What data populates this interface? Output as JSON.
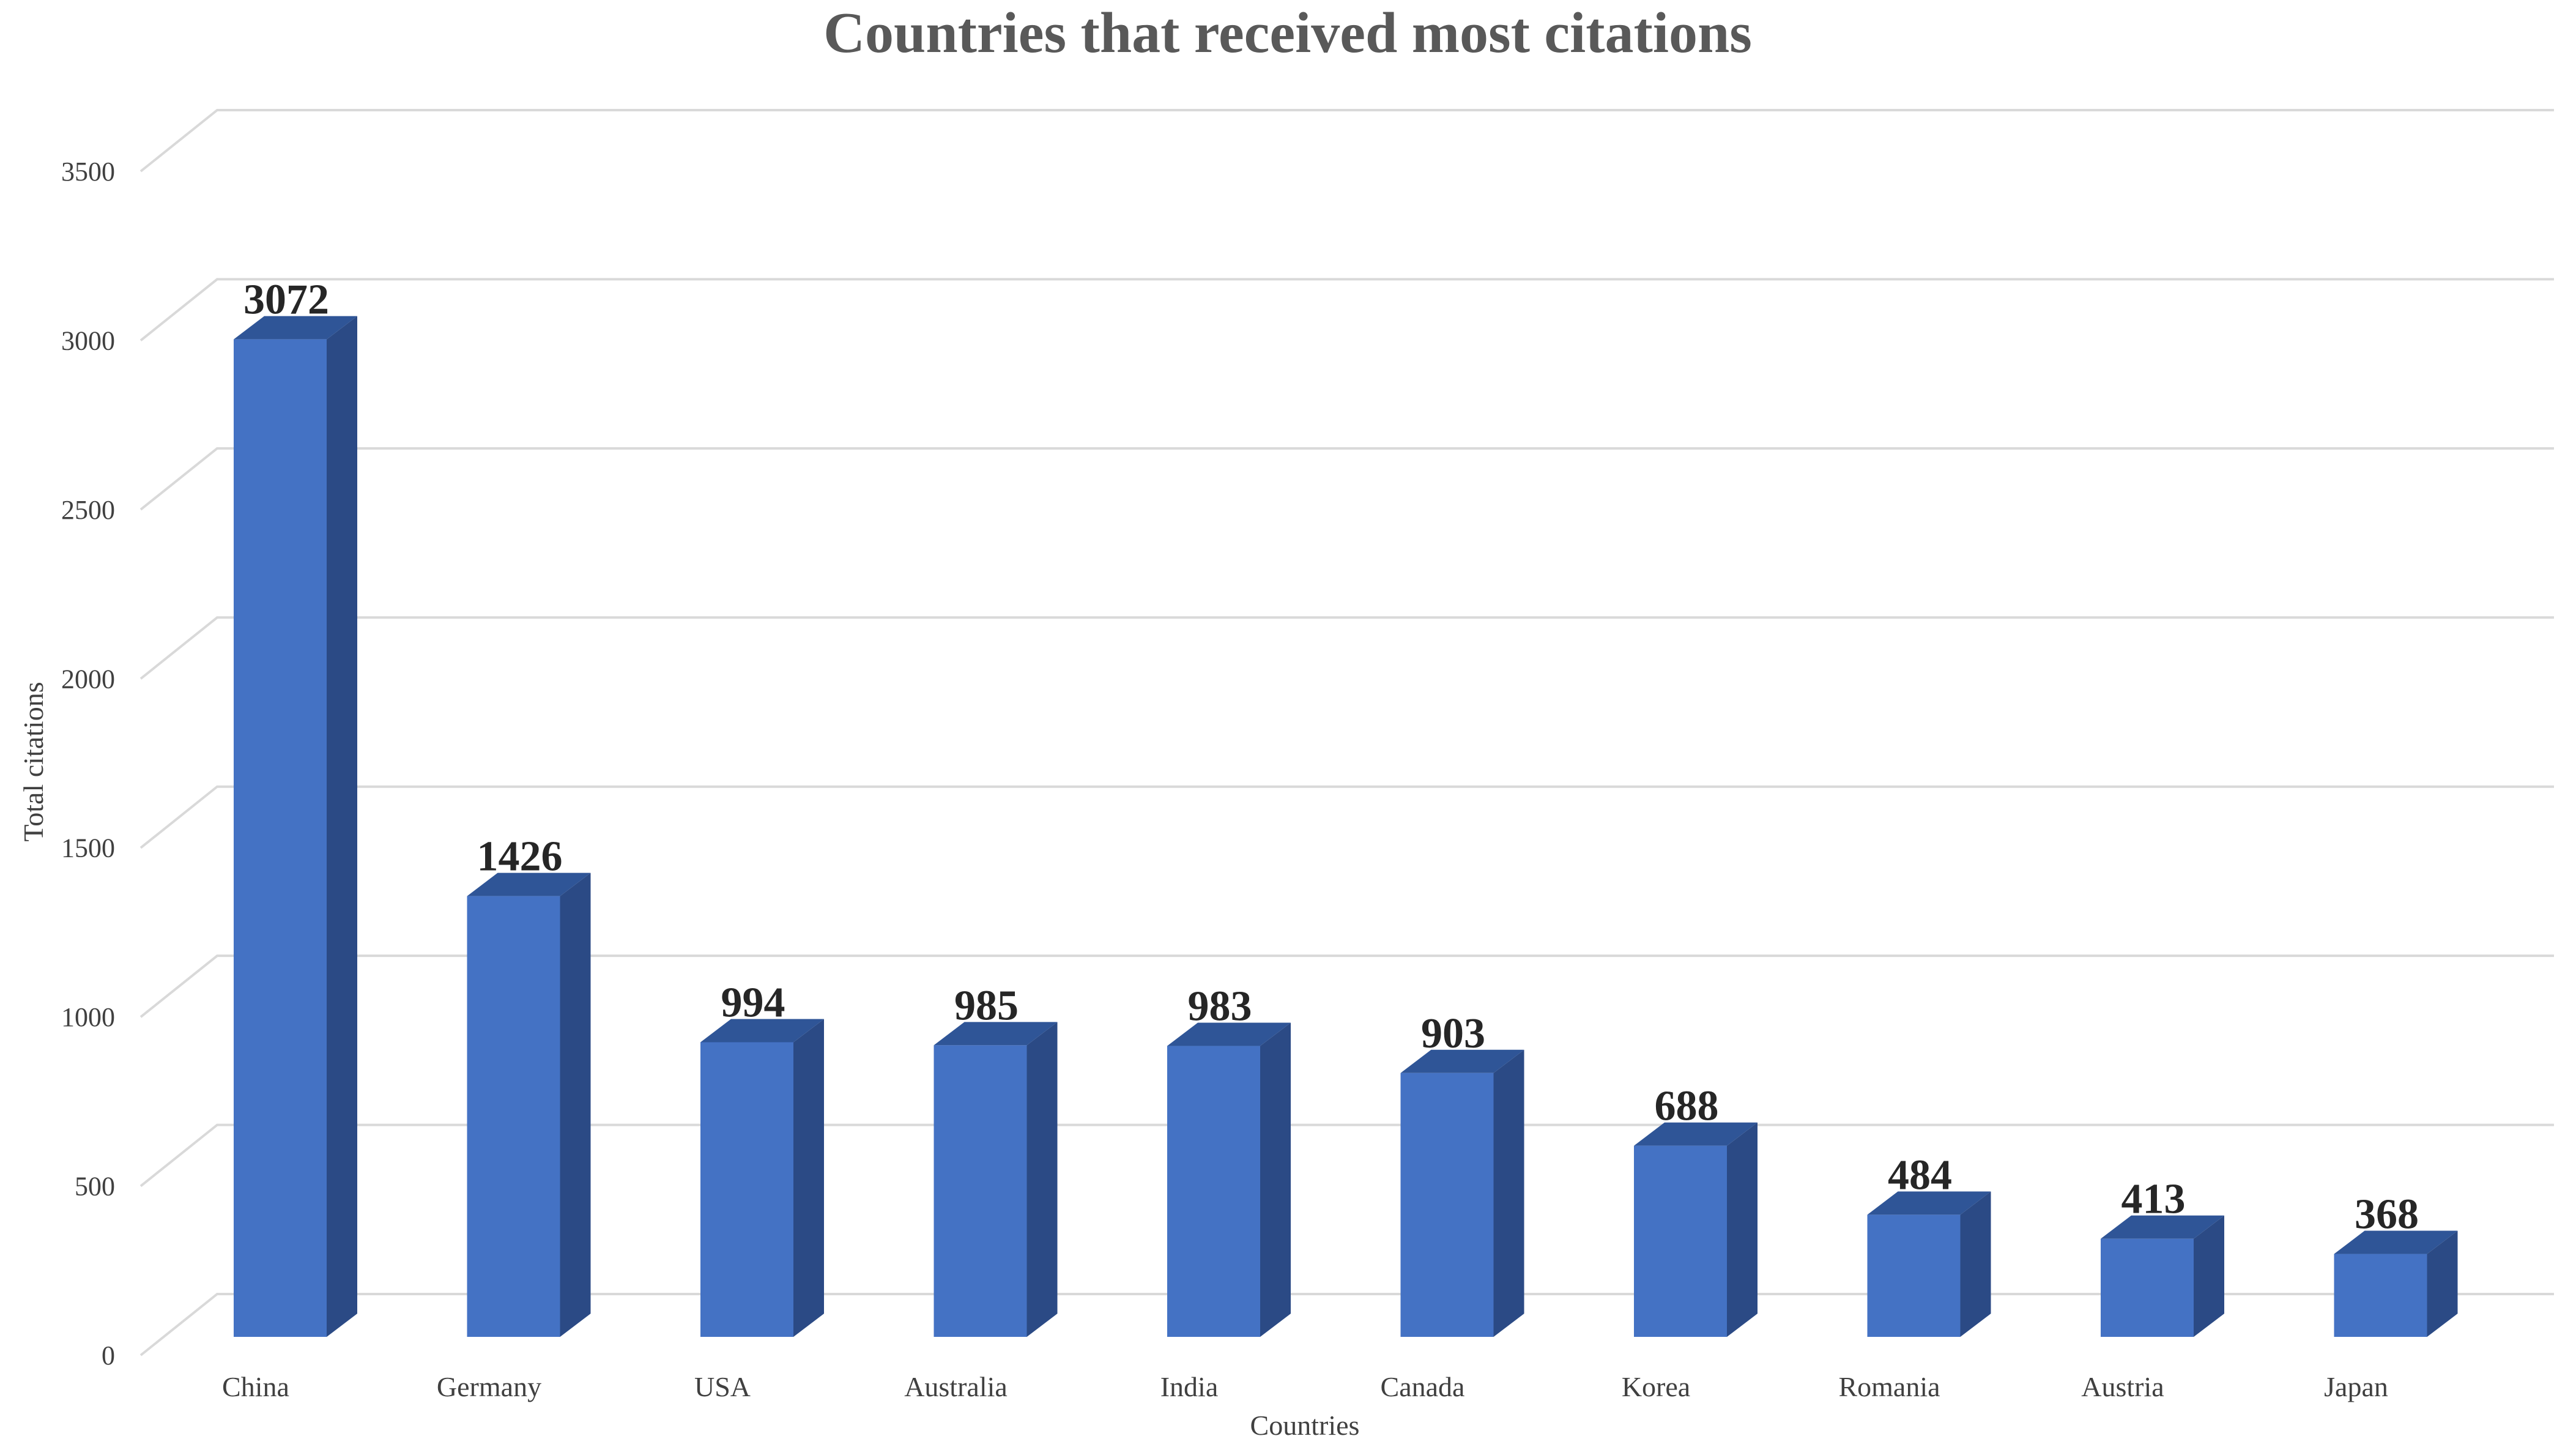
{
  "chart_data": {
    "type": "bar",
    "title": "Countries that received most citations",
    "xlabel": "Countries",
    "ylabel": "Total citations",
    "categories": [
      "China",
      "Germany",
      "USA",
      "Australia",
      "India",
      "Canada",
      "Korea",
      "Romania",
      "Austria",
      "Japan"
    ],
    "values": [
      3072,
      1426,
      994,
      985,
      983,
      903,
      688,
      484,
      413,
      368
    ],
    "data_labels": [
      "3072",
      "1426",
      "994",
      "985",
      "983",
      "903",
      "688",
      "484",
      "413",
      "368"
    ],
    "yticks": [
      "0",
      "500",
      "1000",
      "1500",
      "2000",
      "2500",
      "3000",
      "3500"
    ],
    "ylim": [
      0,
      3500
    ],
    "grid": true,
    "legend": "none",
    "style": "3d-column",
    "colors": {
      "bar_front": "#4472c4",
      "bar_side": "#2b4a85",
      "bar_top": "#2f5597",
      "grid": "#d9d9d9"
    }
  }
}
